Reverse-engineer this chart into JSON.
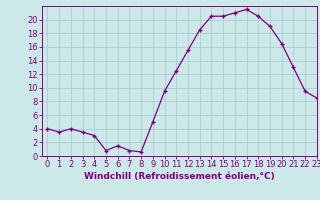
{
  "xlabel": "Windchill (Refroidissement éolien,°C)",
  "x_values": [
    0,
    1,
    2,
    3,
    4,
    5,
    6,
    7,
    8,
    9,
    10,
    11,
    12,
    13,
    14,
    15,
    16,
    17,
    18,
    19,
    20,
    21,
    22,
    23
  ],
  "y_values": [
    4,
    3.5,
    4,
    3.5,
    3,
    0.8,
    1.5,
    0.8,
    0.6,
    5,
    9.5,
    12.5,
    15.5,
    18.5,
    20.5,
    20.5,
    21,
    21.5,
    20.5,
    19,
    16.5,
    13,
    9.5,
    8.5
  ],
  "ylim": [
    0,
    22
  ],
  "xlim": [
    -0.5,
    23
  ],
  "yticks": [
    0,
    2,
    4,
    6,
    8,
    10,
    12,
    14,
    16,
    18,
    20
  ],
  "xticks": [
    0,
    1,
    2,
    3,
    4,
    5,
    6,
    7,
    8,
    9,
    10,
    11,
    12,
    13,
    14,
    15,
    16,
    17,
    18,
    19,
    20,
    21,
    22,
    23
  ],
  "line_color": "#800080",
  "marker": "+",
  "bg_color": "#cce8e8",
  "grid_color": "#aacfcf",
  "label_color": "#800080",
  "tick_label_fontsize": 6.0,
  "xlabel_fontsize": 6.5
}
